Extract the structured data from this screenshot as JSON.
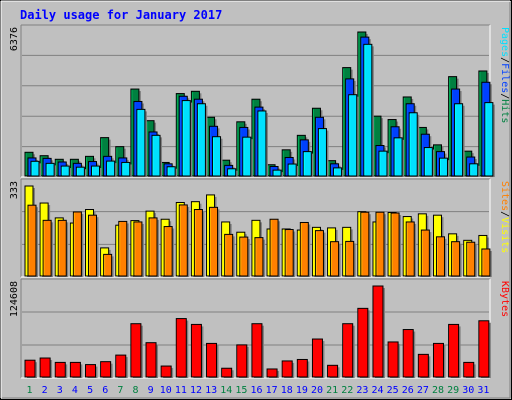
{
  "title": "Daily usage for January 2017",
  "colors": {
    "hits": "#008040",
    "files": "#0040ff",
    "pages": "#00e0ff",
    "visits": "#ffff00",
    "sites": "#ff8000",
    "kbytes": "#ff0000",
    "background": "#c0c0c0",
    "title": "#0000ff",
    "weekend_day": "#008040",
    "weekday": "#0000ff"
  },
  "chart_data": [
    {
      "type": "bar",
      "panel": "pages-files-hits",
      "ymax_label": "6376",
      "ylim": [
        0,
        6376
      ],
      "legend": [
        {
          "label": "Hits",
          "color": "#008040"
        },
        {
          "label": "Files",
          "color": "#0040ff"
        },
        {
          "label": "Pages",
          "color": "#00e0ff"
        }
      ],
      "series": [
        {
          "name": "Hits",
          "values": [
            1050,
            900,
            740,
            740,
            870,
            1700,
            1300,
            3850,
            2450,
            600,
            3650,
            3750,
            2600,
            700,
            2400,
            3400,
            500,
            1160,
            1800,
            3000,
            680,
            4800,
            6376,
            2650,
            2500,
            3500,
            2150,
            1380,
            4400,
            1100,
            4650
          ]
        },
        {
          "name": "Files",
          "values": [
            800,
            780,
            620,
            560,
            640,
            870,
            800,
            3300,
            1950,
            540,
            3530,
            3400,
            2200,
            470,
            2150,
            3050,
            420,
            820,
            1600,
            2600,
            540,
            4300,
            6150,
            1350,
            2180,
            3200,
            1850,
            1080,
            3850,
            840,
            4150
          ]
        },
        {
          "name": "Pages",
          "values": [
            650,
            560,
            440,
            390,
            440,
            660,
            600,
            2950,
            1800,
            410,
            3340,
            3200,
            1740,
            320,
            1720,
            2880,
            260,
            530,
            1080,
            2100,
            360,
            3600,
            5830,
            1100,
            1690,
            2800,
            1260,
            790,
            3200,
            540,
            3250
          ]
        }
      ]
    },
    {
      "type": "bar",
      "panel": "sites-visits",
      "ymax_label": "333",
      "ylim": [
        0,
        333
      ],
      "legend": [
        {
          "label": "Visits",
          "color": "#ffff00"
        },
        {
          "label": "Sites",
          "color": "#ff8000"
        }
      ],
      "series": [
        {
          "name": "Visits",
          "values": [
            333,
            270,
            215,
            196,
            246,
            104,
            188,
            205,
            240,
            210,
            272,
            275,
            300,
            200,
            162,
            206,
            174,
            174,
            170,
            180,
            178,
            180,
            238,
            200,
            235,
            220,
            230,
            225,
            156,
            132,
            150
          ]
        },
        {
          "name": "Sites",
          "values": [
            262,
            206,
            206,
            237,
            225,
            80,
            202,
            200,
            215,
            183,
            263,
            246,
            254,
            154,
            144,
            142,
            210,
            172,
            198,
            168,
            127,
            128,
            236,
            236,
            233,
            200,
            170,
            145,
            127,
            125,
            100
          ]
        }
      ]
    },
    {
      "type": "bar",
      "panel": "kbytes",
      "ymax_label": "124608",
      "ylim": [
        0,
        124608
      ],
      "legend": [
        {
          "label": "KBytes",
          "color": "#ff0000"
        }
      ],
      "series": [
        {
          "name": "KBytes",
          "values": [
            23000,
            26000,
            20000,
            20000,
            17000,
            21000,
            30000,
            73000,
            47000,
            15000,
            80000,
            72000,
            46000,
            12000,
            44000,
            73000,
            11000,
            22000,
            24000,
            52000,
            16000,
            73000,
            94000,
            124608,
            48000,
            65000,
            31000,
            46000,
            72000,
            20000,
            77000
          ]
        }
      ]
    }
  ],
  "days": [
    "1",
    "2",
    "3",
    "4",
    "5",
    "6",
    "7",
    "8",
    "9",
    "10",
    "11",
    "12",
    "13",
    "14",
    "15",
    "16",
    "17",
    "18",
    "19",
    "20",
    "21",
    "22",
    "23",
    "24",
    "25",
    "26",
    "27",
    "28",
    "29",
    "30",
    "31"
  ],
  "weekend_days": [
    "1",
    "7",
    "8",
    "14",
    "15",
    "21",
    "22",
    "28",
    "29"
  ]
}
